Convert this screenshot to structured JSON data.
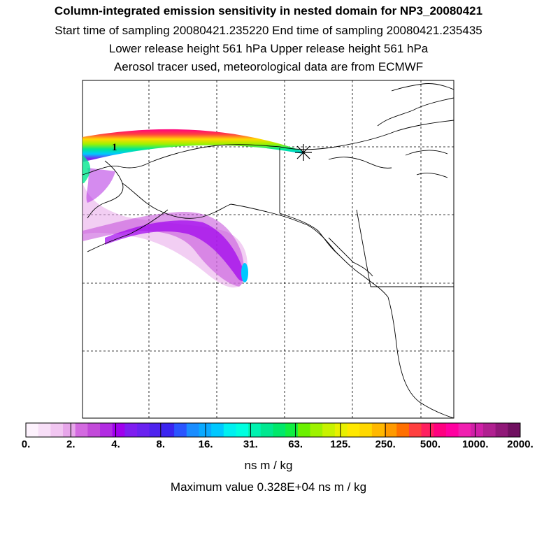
{
  "titles": {
    "line1": "Column-integrated emission sensitivity in nested domain for NP3_20080421",
    "line2": "Start time of sampling 20080421.235220     End time of sampling 20080421.235435",
    "line3": "Lower release height  561 hPa       Upper release height  561 hPa",
    "line4": "Aerosol tracer used, meteorological data are from ECMWF"
  },
  "map": {
    "release_marker_icon": "star-asterisk-icon",
    "plume_label": "1"
  },
  "colorbar": {
    "tick_labels": [
      "0.",
      "2.",
      "4.",
      "8.",
      "16.",
      "31.",
      "63.",
      "125.",
      "250.",
      "500.",
      "1000.",
      "2000."
    ],
    "colors": [
      "#fdf2fd",
      "#f8dff8",
      "#f1c6f1",
      "#e7a6ea",
      "#d36ae0",
      "#c24ad9",
      "#b22ce2",
      "#9f00ee",
      "#7f1df0",
      "#6a22f0",
      "#4d23ee",
      "#3a24f0",
      "#2a55ff",
      "#1a8dff",
      "#0aa9ff",
      "#00c8ff",
      "#00f0f0",
      "#00ffe0",
      "#00f2b0",
      "#00e890",
      "#00e86a",
      "#10ee40",
      "#6bf000",
      "#9ef200",
      "#c8f200",
      "#e8f000",
      "#ffe800",
      "#ffd800",
      "#ffb800",
      "#ff9a00",
      "#ff7000",
      "#ff4040",
      "#ff2060",
      "#ff0080",
      "#ff00a0",
      "#f020b0",
      "#d020a8",
      "#b02090",
      "#901878",
      "#701060"
    ],
    "units": "ns m / kg"
  },
  "max_value_text": "Maximum value  0.328E+04 ns m / kg",
  "colors": {
    "plume_low": "#c24ad9",
    "plume_mid": "#9f00ee",
    "plume_peak": "#00c8ff"
  }
}
